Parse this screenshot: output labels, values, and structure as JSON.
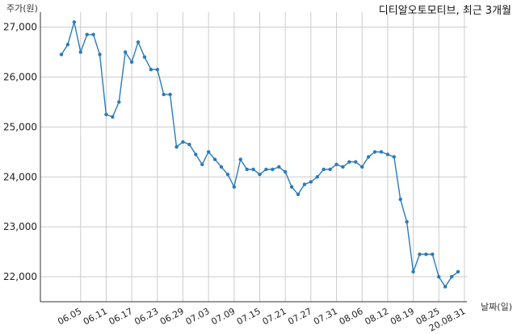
{
  "chart_data": {
    "type": "line",
    "title": "디티알오토모티브, 최근 3개월",
    "ylabel": "주가(원)",
    "xlabel": "날짜(일)",
    "ylim": [
      21500,
      27300
    ],
    "yticks": [
      22000,
      23000,
      24000,
      25000,
      26000,
      27000
    ],
    "ytick_labels": [
      "22,000",
      "23,000",
      "24,000",
      "25,000",
      "26,000",
      "27,000"
    ],
    "xtick_labels": [
      "06.05",
      "06.11",
      "06.17",
      "06.23",
      "06.29",
      "07.03",
      "07.09",
      "07.15",
      "07.21",
      "07.27",
      "07.31",
      "08.06",
      "08.12",
      "08.19",
      "08.25",
      "20.08.31"
    ],
    "xtick_indices": [
      3,
      7,
      11,
      15,
      19,
      23,
      27,
      31,
      35,
      39,
      43,
      47,
      51,
      55,
      59,
      63
    ],
    "grid": true,
    "colors": {
      "line": "#2b7bb9",
      "grid": "#cccccc",
      "axis": "#333333"
    },
    "series": [
      {
        "values": [
          26450,
          26650,
          27100,
          26500,
          26850,
          26850,
          26450,
          25250,
          25200,
          25500,
          26500,
          26300,
          26700,
          26400,
          26150,
          26150,
          25650,
          25650,
          24600,
          24700,
          24650,
          24450,
          24250,
          24500,
          24350,
          24200,
          24050,
          23800,
          24350,
          24150,
          24150,
          24050,
          24150,
          24150,
          24200,
          24100,
          23800,
          23650,
          23850,
          23900,
          24000,
          24150,
          24150,
          24250,
          24200,
          24300,
          24300,
          24200,
          24400,
          24500,
          24500,
          24450,
          24400,
          23550,
          23100,
          22100,
          22450,
          22450,
          22450,
          22000,
          21800,
          22000,
          22100
        ]
      }
    ]
  }
}
